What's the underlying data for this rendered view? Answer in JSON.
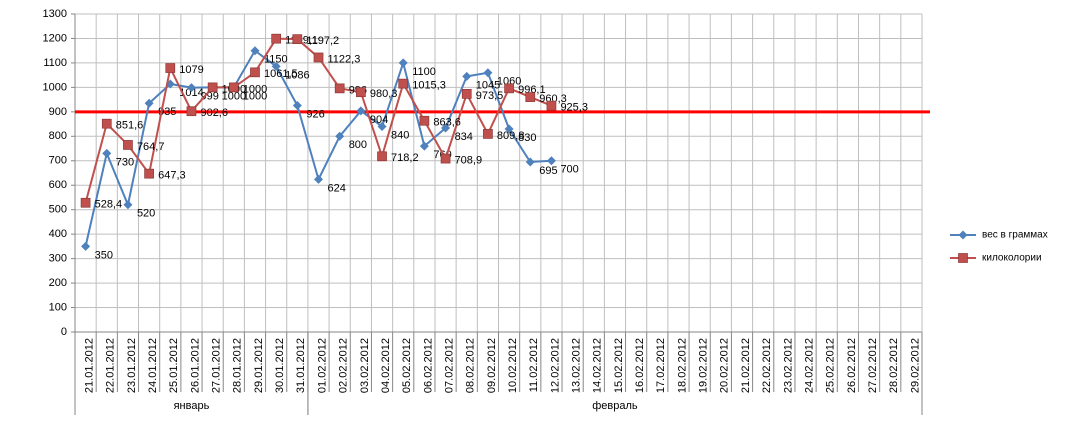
{
  "chart_data": {
    "type": "line",
    "categories": [
      "21.01.2012",
      "22.01.2012",
      "23.01.2012",
      "24.01.2012",
      "25.01.2012",
      "26.01.2012",
      "27.01.2012",
      "28.01.2012",
      "29.01.2012",
      "30.01.2012",
      "31.01.2012",
      "01.02.2012",
      "02.02.2012",
      "03.02.2012",
      "04.02.2012",
      "05.02.2012",
      "06.02.2012",
      "07.02.2012",
      "08.02.2012",
      "09.02.2012",
      "10.02.2012",
      "11.02.2012",
      "12.02.2012",
      "13.02.2012",
      "14.02.2012",
      "15.02.2012",
      "16.02.2012",
      "17.02.2012",
      "18.02.2012",
      "19.02.2012",
      "20.02.2012",
      "21.02.2012",
      "22.02.2012",
      "23.02.2012",
      "24.02.2012",
      "25.02.2012",
      "26.02.2012",
      "27.02.2012",
      "28.02.2012",
      "29.02.2012"
    ],
    "groups": [
      "январь",
      "февраль"
    ],
    "series": [
      {
        "name": "вес в граммах",
        "color": "#4f81bd",
        "marker": "diamond",
        "values": [
          350,
          730,
          520,
          935,
          1014,
          999,
          1000,
          1000,
          1150,
          1086,
          926,
          624,
          800,
          904,
          840,
          1100,
          760,
          834,
          1045,
          1060,
          830,
          695,
          700,
          null,
          null,
          null,
          null,
          null,
          null,
          null,
          null,
          null,
          null,
          null,
          null,
          null,
          null,
          null,
          null,
          null
        ]
      },
      {
        "name": "килоколории",
        "color": "#c0504d",
        "marker": "square",
        "values": [
          528.4,
          851.6,
          764.7,
          647.3,
          1079,
          902.6,
          1000,
          1000,
          1061.5,
          1199.1,
          1197.2,
          1122.3,
          996,
          980.3,
          718.2,
          1015.3,
          863.6,
          708.9,
          973.5,
          809.8,
          996.1,
          960.3,
          925.3,
          null,
          null,
          null,
          null,
          null,
          null,
          null,
          null,
          null,
          null,
          null,
          null,
          null,
          null,
          null,
          null,
          null
        ],
        "value_labels": [
          "528,4",
          "851,6",
          "764,7",
          "647,3",
          "1079",
          "902,6",
          "1000",
          "1000",
          "1061,5",
          "1199,1",
          "1197,2",
          "1122,3",
          "996",
          "980,3",
          "718,2",
          "1015,3",
          "863,6",
          "708,9",
          "973,5",
          "809,8",
          "996,1",
          "960,3",
          "925,3",
          null,
          null,
          null,
          null,
          null,
          null,
          null,
          null,
          null,
          null,
          null,
          null,
          null,
          null,
          null,
          null,
          null
        ]
      }
    ],
    "reference_line": {
      "value": 900,
      "color": "#ff0000"
    },
    "ylim": [
      0,
      1300
    ],
    "yticks": [
      0,
      100,
      200,
      300,
      400,
      500,
      600,
      700,
      800,
      900,
      1000,
      1100,
      1200,
      1300
    ],
    "grid": true,
    "legend": "right"
  }
}
